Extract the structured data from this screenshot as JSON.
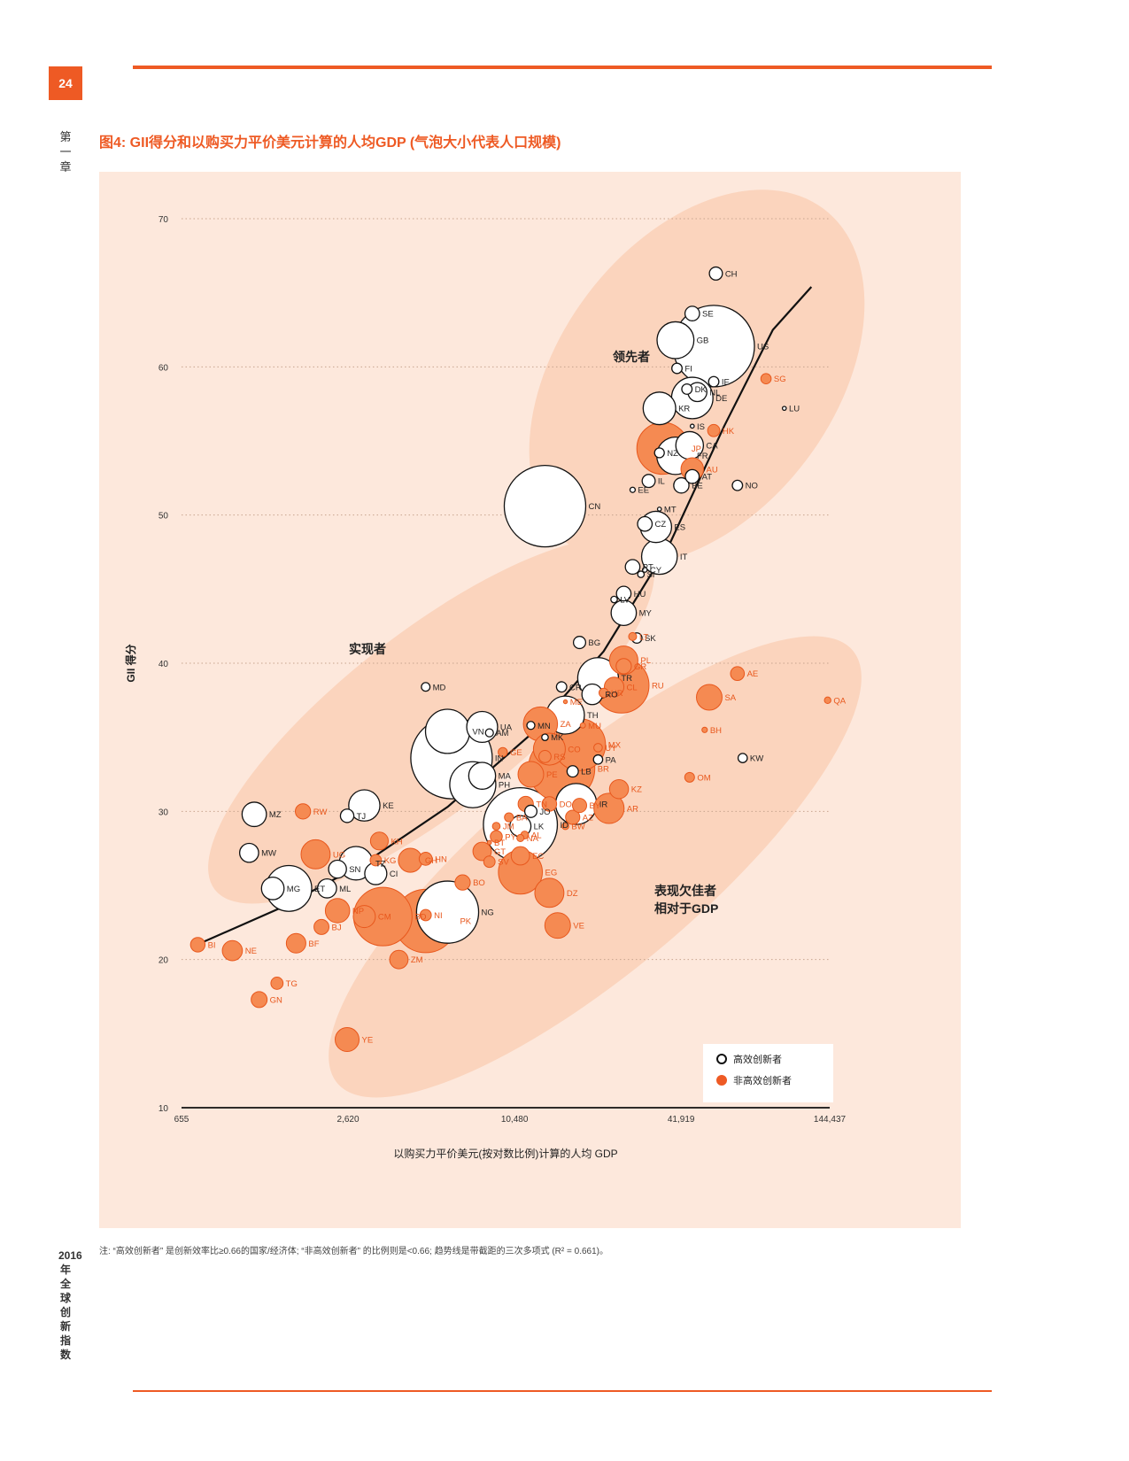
{
  "page": {
    "number": "24",
    "chapter": "第一章",
    "side_label": "2016年全球创新指数",
    "figure_title": "图4: GII得分和以购买力平价美元计算的人均GDP (气泡大小代表人口规模)",
    "note": "注: “高效创新者” 是创新效率比≥0.66的国家/经济体; “非高效创新者” 的比例则是<0.66; 趋势线是带截距的三次多项式 (R² = 0.661)。"
  },
  "colors": {
    "accent": "#ee5a24",
    "panel": "#fde8dc",
    "ellipse": "#fbd4bd",
    "efficient": "#ffffff",
    "non_efficient": "#f58a52"
  },
  "chart_data": {
    "type": "scatter",
    "title": "图4: GII得分和以购买力平价美元计算的人均GDP (气泡大小代表人口规模)",
    "xlabel": "以购买力平价美元(按对数比例)计算的人均 GDP",
    "ylabel": "GII 得分",
    "x_scale": "log",
    "xlim": [
      655,
      144437
    ],
    "ylim": [
      10,
      70
    ],
    "x_ticks": [
      "655",
      "2,620",
      "10,480",
      "41,919",
      "144,437"
    ],
    "y_ticks": [
      "10",
      "20",
      "30",
      "40",
      "50",
      "60",
      "70"
    ],
    "grid": "horizontal dotted",
    "legend": {
      "position": "bottom-right",
      "items": [
        {
          "label": "高效创新者",
          "kind": "efficient"
        },
        {
          "label": "非高效创新者",
          "kind": "non_efficient"
        }
      ]
    },
    "group_labels": [
      "领先者",
      "实现者",
      "表现欠佳者",
      "相对于GDP"
    ],
    "points": [
      {
        "code": "CH",
        "x": 56000,
        "y": 66.3,
        "pop": 8,
        "eff": true
      },
      {
        "code": "SE",
        "x": 46000,
        "y": 63.6,
        "pop": 10,
        "eff": true
      },
      {
        "code": "GB",
        "x": 40000,
        "y": 61.8,
        "pop": 64,
        "eff": true
      },
      {
        "code": "US",
        "x": 55000,
        "y": 61.4,
        "pop": 320,
        "eff": true
      },
      {
        "code": "FI",
        "x": 40500,
        "y": 59.9,
        "pop": 5,
        "eff": true
      },
      {
        "code": "SG",
        "x": 85000,
        "y": 59.2,
        "pop": 5,
        "eff": false
      },
      {
        "code": "DK",
        "x": 44000,
        "y": 58.5,
        "pop": 5,
        "eff": true
      },
      {
        "code": "IE",
        "x": 55000,
        "y": 59.0,
        "pop": 5,
        "eff": true
      },
      {
        "code": "NL",
        "x": 48000,
        "y": 58.3,
        "pop": 17,
        "eff": true
      },
      {
        "code": "DE",
        "x": 46000,
        "y": 57.9,
        "pop": 81,
        "eff": true
      },
      {
        "code": "KR",
        "x": 35000,
        "y": 57.2,
        "pop": 50,
        "eff": true
      },
      {
        "code": "LU",
        "x": 99000,
        "y": 57.2,
        "pop": 0.5,
        "eff": true
      },
      {
        "code": "IS",
        "x": 46000,
        "y": 56.0,
        "pop": 0.3,
        "eff": true
      },
      {
        "code": "HK",
        "x": 55000,
        "y": 55.7,
        "pop": 7,
        "eff": false
      },
      {
        "code": "JP",
        "x": 36000,
        "y": 54.5,
        "pop": 127,
        "eff": false
      },
      {
        "code": "NZ",
        "x": 35000,
        "y": 54.2,
        "pop": 4.5,
        "eff": true
      },
      {
        "code": "CA",
        "x": 45000,
        "y": 54.7,
        "pop": 36,
        "eff": true
      },
      {
        "code": "FR",
        "x": 40000,
        "y": 54.0,
        "pop": 66,
        "eff": true
      },
      {
        "code": "AU",
        "x": 46000,
        "y": 53.1,
        "pop": 24,
        "eff": false
      },
      {
        "code": "AT",
        "x": 46000,
        "y": 52.6,
        "pop": 9,
        "eff": true
      },
      {
        "code": "IL",
        "x": 32000,
        "y": 52.3,
        "pop": 8,
        "eff": true
      },
      {
        "code": "NO",
        "x": 67000,
        "y": 52.0,
        "pop": 5,
        "eff": true
      },
      {
        "code": "BE",
        "x": 42000,
        "y": 52.0,
        "pop": 11,
        "eff": true
      },
      {
        "code": "EE",
        "x": 28000,
        "y": 51.7,
        "pop": 1.3,
        "eff": true
      },
      {
        "code": "CN",
        "x": 13500,
        "y": 50.6,
        "pop": 1370,
        "eff": true
      },
      {
        "code": "MT",
        "x": 35000,
        "y": 50.4,
        "pop": 0.4,
        "eff": true
      },
      {
        "code": "CZ",
        "x": 31000,
        "y": 49.4,
        "pop": 10,
        "eff": true
      },
      {
        "code": "ES",
        "x": 34000,
        "y": 49.2,
        "pop": 46,
        "eff": true
      },
      {
        "code": "IT",
        "x": 35000,
        "y": 47.2,
        "pop": 60,
        "eff": true
      },
      {
        "code": "PT",
        "x": 28000,
        "y": 46.5,
        "pop": 10,
        "eff": true
      },
      {
        "code": "CY",
        "x": 31000,
        "y": 46.3,
        "pop": 1,
        "eff": true
      },
      {
        "code": "SI",
        "x": 30000,
        "y": 46.0,
        "pop": 2,
        "eff": true
      },
      {
        "code": "HU",
        "x": 26000,
        "y": 44.7,
        "pop": 10,
        "eff": true
      },
      {
        "code": "LV",
        "x": 24000,
        "y": 44.3,
        "pop": 2,
        "eff": true
      },
      {
        "code": "MY",
        "x": 26000,
        "y": 43.4,
        "pop": 30,
        "eff": true
      },
      {
        "code": "BG",
        "x": 18000,
        "y": 41.4,
        "pop": 7,
        "eff": true
      },
      {
        "code": "SK",
        "x": 29000,
        "y": 41.7,
        "pop": 5,
        "eff": true
      },
      {
        "code": "LT",
        "x": 28000,
        "y": 41.8,
        "pop": 3,
        "eff": false
      },
      {
        "code": "PL",
        "x": 26000,
        "y": 40.2,
        "pop": 38,
        "eff": false
      },
      {
        "code": "GR",
        "x": 26000,
        "y": 39.8,
        "pop": 11,
        "eff": false
      },
      {
        "code": "TR",
        "x": 21000,
        "y": 39.0,
        "pop": 78,
        "eff": true
      },
      {
        "code": "CL",
        "x": 24000,
        "y": 38.4,
        "pop": 18,
        "eff": false
      },
      {
        "code": "RU",
        "x": 25500,
        "y": 38.5,
        "pop": 144,
        "eff": false
      },
      {
        "code": "MD",
        "x": 5000,
        "y": 38.4,
        "pop": 3.5,
        "eff": true
      },
      {
        "code": "CR",
        "x": 15500,
        "y": 38.4,
        "pop": 5,
        "eff": true
      },
      {
        "code": "HR",
        "x": 22000,
        "y": 38.0,
        "pop": 4,
        "eff": false
      },
      {
        "code": "RO",
        "x": 20000,
        "y": 37.9,
        "pop": 20,
        "eff": true
      },
      {
        "code": "ME",
        "x": 16000,
        "y": 37.4,
        "pop": 0.6,
        "eff": false
      },
      {
        "code": "AE",
        "x": 67000,
        "y": 39.3,
        "pop": 9,
        "eff": false
      },
      {
        "code": "QA",
        "x": 142000,
        "y": 37.5,
        "pop": 2,
        "eff": false
      },
      {
        "code": "SA",
        "x": 53000,
        "y": 37.7,
        "pop": 31,
        "eff": false
      },
      {
        "code": "TH",
        "x": 16000,
        "y": 36.5,
        "pop": 68,
        "eff": true
      },
      {
        "code": "ZA",
        "x": 13000,
        "y": 35.9,
        "pop": 55,
        "eff": false
      },
      {
        "code": "UA",
        "x": 8000,
        "y": 35.7,
        "pop": 45,
        "eff": true
      },
      {
        "code": "MN",
        "x": 12000,
        "y": 35.8,
        "pop": 3,
        "eff": true
      },
      {
        "code": "MU",
        "x": 18500,
        "y": 35.8,
        "pop": 1.3,
        "eff": false
      },
      {
        "code": "BH",
        "x": 51000,
        "y": 35.5,
        "pop": 1.4,
        "eff": false
      },
      {
        "code": "VN",
        "x": 6000,
        "y": 35.4,
        "pop": 92,
        "eff": true
      },
      {
        "code": "AM",
        "x": 8500,
        "y": 35.3,
        "pop": 3,
        "eff": true
      },
      {
        "code": "MK",
        "x": 13500,
        "y": 35.0,
        "pop": 2,
        "eff": true
      },
      {
        "code": "CO",
        "x": 14000,
        "y": 34.2,
        "pop": 48,
        "eff": false
      },
      {
        "code": "MX",
        "x": 18000,
        "y": 34.5,
        "pop": 127,
        "eff": false
      },
      {
        "code": "UY",
        "x": 21000,
        "y": 34.3,
        "pop": 3.4,
        "eff": false
      },
      {
        "code": "GE",
        "x": 9500,
        "y": 34.0,
        "pop": 4,
        "eff": false
      },
      {
        "code": "IN",
        "x": 6200,
        "y": 33.6,
        "pop": 1310,
        "eff": true
      },
      {
        "code": "RS",
        "x": 13500,
        "y": 33.7,
        "pop": 7,
        "eff": false
      },
      {
        "code": "PA",
        "x": 21000,
        "y": 33.5,
        "pop": 4,
        "eff": true
      },
      {
        "code": "KW",
        "x": 70000,
        "y": 33.6,
        "pop": 4,
        "eff": true
      },
      {
        "code": "LB",
        "x": 17000,
        "y": 32.7,
        "pop": 6,
        "eff": true
      },
      {
        "code": "MA",
        "x": 8000,
        "y": 32.4,
        "pop": 34,
        "eff": true
      },
      {
        "code": "PE",
        "x": 12000,
        "y": 32.5,
        "pop": 31,
        "eff": false
      },
      {
        "code": "OM",
        "x": 45000,
        "y": 32.3,
        "pop": 4.5,
        "eff": false
      },
      {
        "code": "PH",
        "x": 7400,
        "y": 31.8,
        "pop": 100,
        "eff": true
      },
      {
        "code": "KZ",
        "x": 25000,
        "y": 31.5,
        "pop": 17,
        "eff": false
      },
      {
        "code": "BR",
        "x": 15500,
        "y": 32.9,
        "pop": 208,
        "eff": false
      },
      {
        "code": "IR",
        "x": 17500,
        "y": 30.5,
        "pop": 79,
        "eff": true
      },
      {
        "code": "AR",
        "x": 23000,
        "y": 30.2,
        "pop": 43,
        "eff": false
      },
      {
        "code": "BY",
        "x": 18000,
        "y": 30.4,
        "pop": 9.5,
        "eff": false
      },
      {
        "code": "TN",
        "x": 11500,
        "y": 30.5,
        "pop": 11,
        "eff": false
      },
      {
        "code": "DO",
        "x": 14000,
        "y": 30.5,
        "pop": 10,
        "eff": false
      },
      {
        "code": "JO",
        "x": 12000,
        "y": 30.0,
        "pop": 7,
        "eff": true
      },
      {
        "code": "BA",
        "x": 10000,
        "y": 29.6,
        "pop": 3.8,
        "eff": false
      },
      {
        "code": "AZ",
        "x": 17000,
        "y": 29.6,
        "pop": 9.6,
        "eff": false
      },
      {
        "code": "KE",
        "x": 3000,
        "y": 30.4,
        "pop": 46,
        "eff": true
      },
      {
        "code": "RW",
        "x": 1800,
        "y": 30.0,
        "pop": 11,
        "eff": false
      },
      {
        "code": "MZ",
        "x": 1200,
        "y": 29.8,
        "pop": 28,
        "eff": true
      },
      {
        "code": "TJ",
        "x": 2600,
        "y": 29.7,
        "pop": 8.5,
        "eff": true
      },
      {
        "code": "JM",
        "x": 9000,
        "y": 29.0,
        "pop": 2.8,
        "eff": false
      },
      {
        "code": "LK",
        "x": 11000,
        "y": 29.0,
        "pop": 21,
        "eff": true
      },
      {
        "code": "ID",
        "x": 11000,
        "y": 29.1,
        "pop": 258,
        "eff": true
      },
      {
        "code": "AL",
        "x": 11400,
        "y": 28.4,
        "pop": 2.9,
        "eff": false
      },
      {
        "code": "BW",
        "x": 16000,
        "y": 29.0,
        "pop": 2.2,
        "eff": false
      },
      {
        "code": "PY",
        "x": 9000,
        "y": 28.3,
        "pop": 6.8,
        "eff": false
      },
      {
        "code": "NA",
        "x": 11000,
        "y": 28.2,
        "pop": 2.4,
        "eff": false
      },
      {
        "code": "BT",
        "x": 8500,
        "y": 27.9,
        "pop": 0.8,
        "eff": false
      },
      {
        "code": "KH",
        "x": 3400,
        "y": 28.0,
        "pop": 15,
        "eff": false
      },
      {
        "code": "MW",
        "x": 1150,
        "y": 27.2,
        "pop": 17,
        "eff": true
      },
      {
        "code": "GT",
        "x": 8000,
        "y": 27.3,
        "pop": 16,
        "eff": false
      },
      {
        "code": "EC",
        "x": 11000,
        "y": 27.0,
        "pop": 16,
        "eff": false
      },
      {
        "code": "UG",
        "x": 2000,
        "y": 27.1,
        "pop": 40,
        "eff": false
      },
      {
        "code": "KG",
        "x": 3300,
        "y": 26.7,
        "pop": 6,
        "eff": false
      },
      {
        "code": "HN",
        "x": 5000,
        "y": 26.8,
        "pop": 8,
        "eff": false
      },
      {
        "code": "GH",
        "x": 4400,
        "y": 26.7,
        "pop": 27,
        "eff": false
      },
      {
        "code": "SV",
        "x": 8500,
        "y": 26.6,
        "pop": 6.1,
        "eff": false
      },
      {
        "code": "TZ",
        "x": 2800,
        "y": 26.5,
        "pop": 53,
        "eff": true
      },
      {
        "code": "SN",
        "x": 2400,
        "y": 26.1,
        "pop": 15,
        "eff": true
      },
      {
        "code": "CI",
        "x": 3300,
        "y": 25.8,
        "pop": 23,
        "eff": true
      },
      {
        "code": "EG",
        "x": 11000,
        "y": 25.9,
        "pop": 91,
        "eff": false
      },
      {
        "code": "ET",
        "x": 1600,
        "y": 24.8,
        "pop": 99,
        "eff": true
      },
      {
        "code": "MG",
        "x": 1400,
        "y": 24.8,
        "pop": 24,
        "eff": true
      },
      {
        "code": "ML",
        "x": 2200,
        "y": 24.8,
        "pop": 17,
        "eff": true
      },
      {
        "code": "BO",
        "x": 6800,
        "y": 25.2,
        "pop": 11,
        "eff": false
      },
      {
        "code": "DZ",
        "x": 14000,
        "y": 24.5,
        "pop": 40,
        "eff": false
      },
      {
        "code": "CM",
        "x": 3000,
        "y": 22.9,
        "pop": 23,
        "eff": false
      },
      {
        "code": "BD",
        "x": 3500,
        "y": 22.9,
        "pop": 161,
        "eff": false
      },
      {
        "code": "NG",
        "x": 6000,
        "y": 23.2,
        "pop": 182,
        "eff": true
      },
      {
        "code": "NI",
        "x": 5000,
        "y": 23.0,
        "pop": 6,
        "eff": false
      },
      {
        "code": "PK",
        "x": 5000,
        "y": 22.6,
        "pop": 189,
        "eff": false
      },
      {
        "code": "BJ",
        "x": 2100,
        "y": 22.2,
        "pop": 10.6,
        "eff": false
      },
      {
        "code": "NP",
        "x": 2400,
        "y": 23.3,
        "pop": 28,
        "eff": false
      },
      {
        "code": "VE",
        "x": 15000,
        "y": 22.3,
        "pop": 31,
        "eff": false
      },
      {
        "code": "BI",
        "x": 750,
        "y": 21.0,
        "pop": 10,
        "eff": false
      },
      {
        "code": "BF",
        "x": 1700,
        "y": 21.1,
        "pop": 18,
        "eff": false
      },
      {
        "code": "NE",
        "x": 1000,
        "y": 20.6,
        "pop": 19,
        "eff": false
      },
      {
        "code": "ZM",
        "x": 4000,
        "y": 20.0,
        "pop": 16,
        "eff": false
      },
      {
        "code": "TG",
        "x": 1450,
        "y": 18.4,
        "pop": 7,
        "eff": false
      },
      {
        "code": "GN",
        "x": 1250,
        "y": 17.3,
        "pop": 12,
        "eff": false
      },
      {
        "code": "YE",
        "x": 2600,
        "y": 14.6,
        "pop": 27,
        "eff": false
      }
    ]
  }
}
